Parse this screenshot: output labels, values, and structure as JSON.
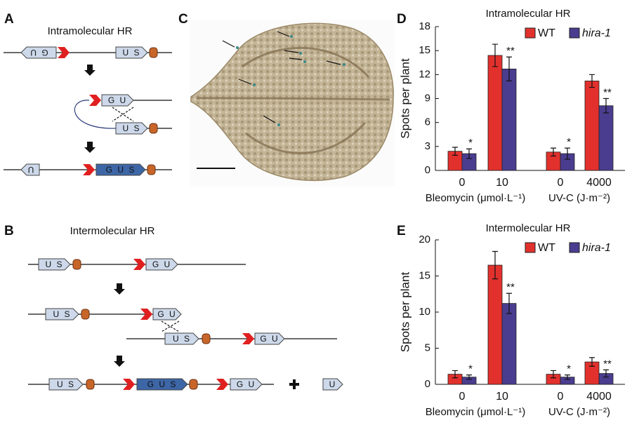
{
  "panels": {
    "A": "A",
    "B": "B",
    "C": "C",
    "D": "D",
    "E": "E"
  },
  "diagram_a": {
    "title": "Intramolecular HR",
    "row1": [
      "G U",
      "U S"
    ],
    "row2": [
      "G U",
      "U S"
    ],
    "row3": [
      "U",
      "G U S"
    ]
  },
  "diagram_b": {
    "title": "Intermolecular HR",
    "row1": [
      "U S",
      "G U"
    ],
    "row2": [
      "U S",
      "G U"
    ],
    "row3": [
      "U S",
      "G U"
    ],
    "row4": [
      "U S",
      "G U S",
      "G U",
      "U"
    ]
  },
  "chart_data": [
    {
      "type": "bar",
      "title": "Intramolecular HR",
      "ylabel": "Spots per plant",
      "categories": [
        "0",
        "10",
        "0",
        "4000"
      ],
      "group_labels": [
        "Bleomycin (μmol·L⁻¹)",
        "UV-C (J·m⁻²)"
      ],
      "series": [
        {
          "name": "WT",
          "color": "#e2312d",
          "values": [
            2.4,
            14.4,
            2.3,
            11.2
          ],
          "errors": [
            0.5,
            1.4,
            0.5,
            0.8
          ]
        },
        {
          "name": "hira-1",
          "color": "#4a3d8f",
          "values": [
            2.1,
            12.7,
            2.1,
            8.1
          ],
          "errors": [
            0.6,
            1.5,
            0.7,
            0.9
          ]
        }
      ],
      "significance": [
        "*",
        "**",
        "*",
        "**"
      ],
      "ylim": [
        0,
        18
      ],
      "yticks": [
        0,
        3,
        6,
        9,
        12,
        15,
        18
      ]
    },
    {
      "type": "bar",
      "title": "Intermolecular HR",
      "ylabel": "Spots per plant",
      "categories": [
        "0",
        "10",
        "0",
        "4000"
      ],
      "group_labels": [
        "Bleomycin (μmol·L⁻¹)",
        "UV-C (J·m⁻²)"
      ],
      "series": [
        {
          "name": "WT",
          "color": "#e2312d",
          "values": [
            1.4,
            16.5,
            1.4,
            3.1
          ],
          "errors": [
            0.5,
            1.9,
            0.5,
            0.6
          ]
        },
        {
          "name": "hira-1",
          "color": "#4a3d8f",
          "values": [
            1.0,
            11.2,
            1.0,
            1.5
          ],
          "errors": [
            0.3,
            1.4,
            0.3,
            0.5
          ]
        }
      ],
      "significance": [
        "*",
        "**",
        "*",
        "**"
      ],
      "ylim": [
        0,
        20
      ],
      "yticks": [
        0,
        5,
        10,
        15,
        20
      ]
    }
  ]
}
